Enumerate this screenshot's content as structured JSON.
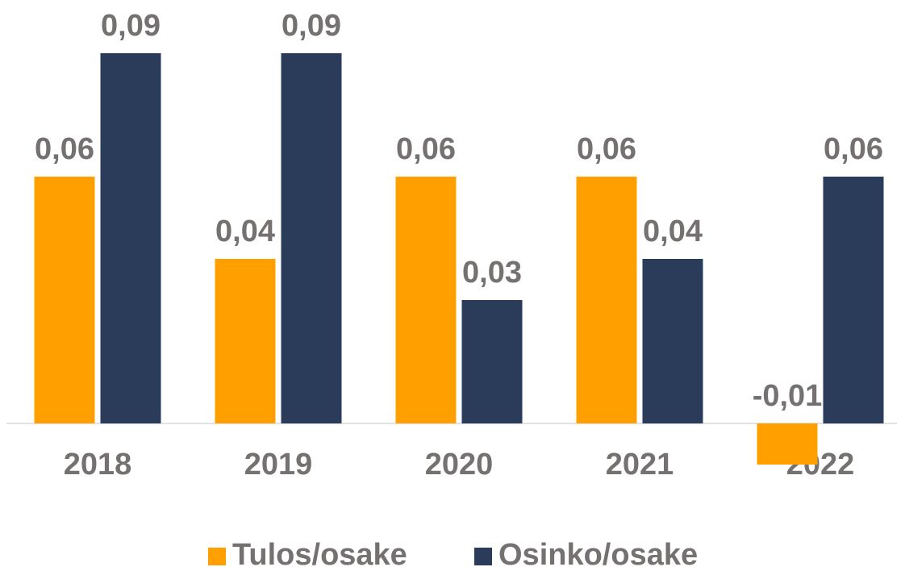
{
  "chart_data": {
    "type": "bar",
    "categories": [
      "2018",
      "2019",
      "2020",
      "2021",
      "2022"
    ],
    "series": [
      {
        "name": "Tulos/osake",
        "color": "#ffa000",
        "values": [
          0.06,
          0.04,
          0.06,
          0.06,
          -0.01
        ],
        "value_labels": [
          "0,06",
          "0,04",
          "0,06",
          "0,06",
          "-0,01"
        ]
      },
      {
        "name": "Osinko/osake",
        "color": "#2b3c5a",
        "values": [
          0.09,
          0.09,
          0.03,
          0.04,
          0.06
        ],
        "value_labels": [
          "0,09",
          "0,09",
          "0,03",
          "0,04",
          "0,06"
        ]
      }
    ]
  }
}
